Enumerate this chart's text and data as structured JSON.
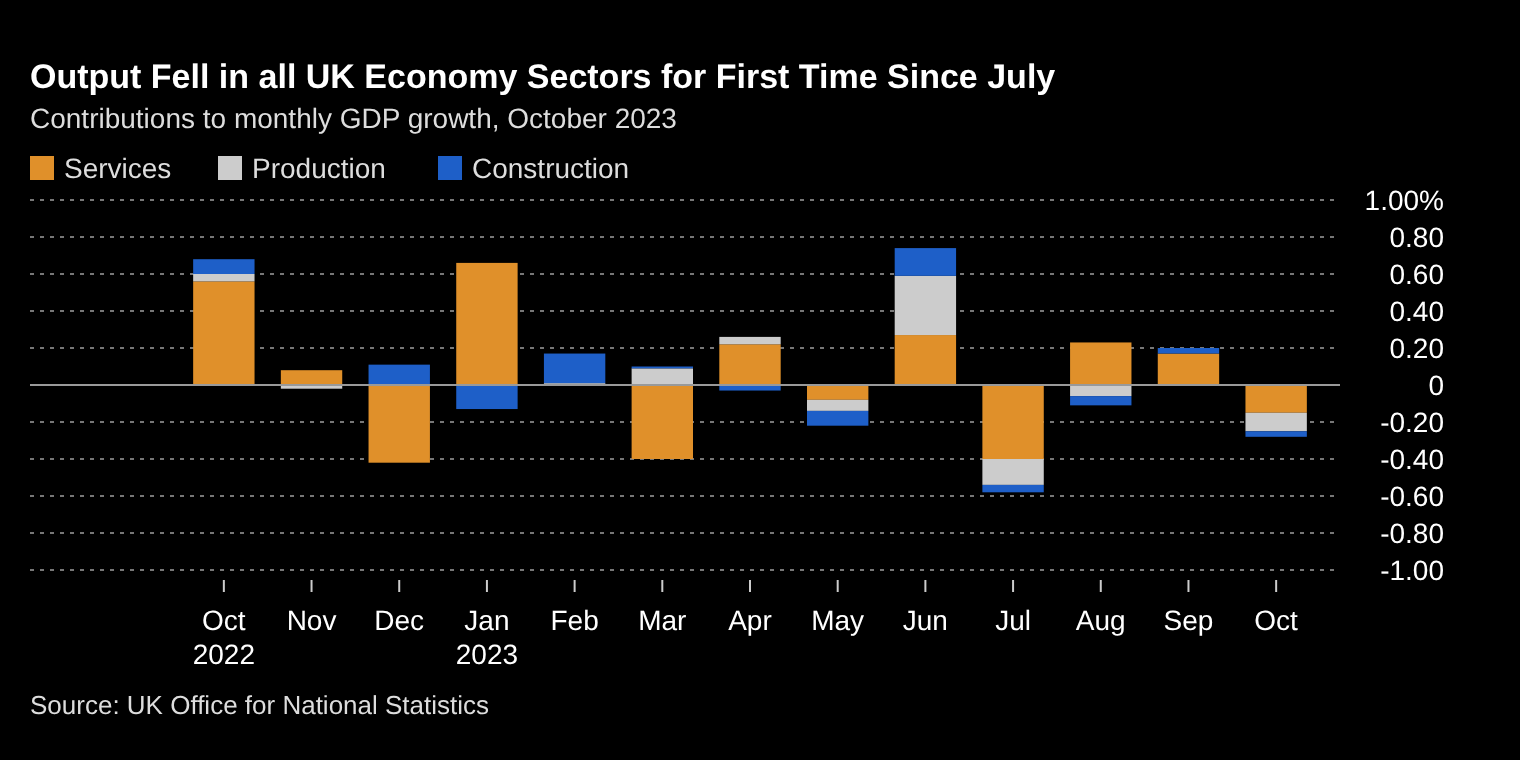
{
  "chart_data": {
    "type": "bar",
    "stacked": true,
    "title": "Output Fell in all UK Economy Sectors for First Time Since July",
    "subtitle": "Contributions to monthly GDP growth, October 2023",
    "categories": [
      "Oct\n2022",
      "Nov",
      "Dec",
      "Jan\n2023",
      "Feb",
      "Mar",
      "Apr",
      "May",
      "Jun",
      "Jul",
      "Aug",
      "Sep",
      "Oct"
    ],
    "series": [
      {
        "name": "Services",
        "color": "#e0902a",
        "values": [
          0.56,
          0.08,
          -0.42,
          0.66,
          0,
          -0.4,
          0.22,
          -0.08,
          0.27,
          -0.4,
          0.23,
          0.17,
          -0.15
        ]
      },
      {
        "name": "Production",
        "color": "#cccccc",
        "values": [
          0.04,
          -0.02,
          0,
          0,
          0.01,
          0.09,
          0.04,
          -0.06,
          0.32,
          -0.14,
          -0.06,
          0,
          -0.1
        ]
      },
      {
        "name": "Construction",
        "color": "#1e5fc8",
        "values": [
          0.08,
          0,
          0.11,
          -0.13,
          0.16,
          0.01,
          -0.03,
          -0.08,
          0.15,
          -0.04,
          -0.05,
          0.03,
          -0.03
        ]
      }
    ],
    "ylim": [
      -1,
      1
    ],
    "yticks": [
      {
        "value": 1,
        "label": "1.00%"
      },
      {
        "value": 0.8,
        "label": "0.80"
      },
      {
        "value": 0.6,
        "label": "0.60"
      },
      {
        "value": 0.4,
        "label": "0.40"
      },
      {
        "value": 0.2,
        "label": "0.20"
      },
      0,
      {
        "value": -0.2,
        "label": "-0.20"
      },
      {
        "value": -0.4,
        "label": "-0.40"
      },
      {
        "value": -0.6,
        "label": "-0.60"
      },
      {
        "value": -0.8,
        "label": "-0.80"
      },
      {
        "value": -1,
        "label": "-1.00"
      }
    ],
    "grid": "y",
    "legend": "top left",
    "annotations": [
      "Source: UK Office for National Statistics"
    ]
  }
}
